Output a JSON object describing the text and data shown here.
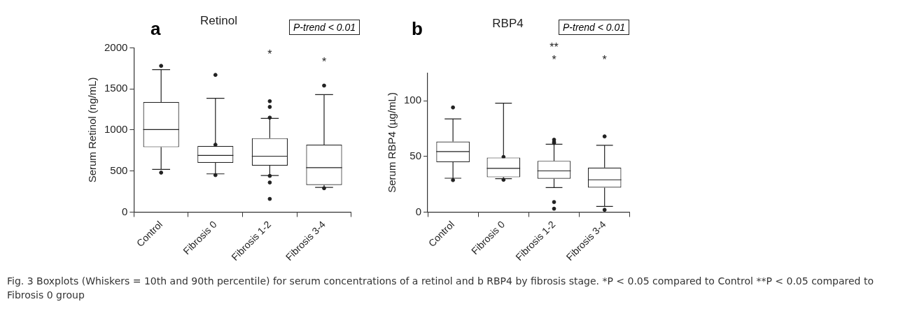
{
  "chart_data": [
    {
      "type": "box",
      "title": "Retinol",
      "ylabel": "Serum Retinol (ng/mL)",
      "categories": [
        "Control",
        "Fibrosis 0",
        "Fibrosis 1-2",
        "Fibrosis 3-4"
      ],
      "color": "#222222",
      "ylim": [
        0,
        2000
      ],
      "yticks": [
        0,
        500,
        1000,
        1500,
        2000
      ],
      "grid": false,
      "legend": false,
      "boxes": [
        {
          "low": 520,
          "q1": 790,
          "median": 1005,
          "q3": 1340,
          "high": 1735,
          "mean": 1060,
          "outliers": [
            1780,
            480
          ]
        },
        {
          "low": 465,
          "q1": 600,
          "median": 690,
          "q3": 805,
          "high": 1385,
          "mean": 780,
          "outliers": [
            1670,
            820,
            450
          ]
        },
        {
          "low": 445,
          "q1": 565,
          "median": 680,
          "q3": 900,
          "high": 1140,
          "mean": 735,
          "outliers": [
            1350,
            1280,
            1150,
            440,
            360,
            160
          ]
        },
        {
          "low": 300,
          "q1": 330,
          "median": 540,
          "q3": 820,
          "high": 1430,
          "mean": 630,
          "outliers": [
            1540,
            290
          ]
        }
      ],
      "annotations": [
        "a",
        "P-trend < 0.01",
        "Fig. 3 Boxplots (Whiskers = 10th and 90th percentile) for serum concentrations of a retinol and b RBP4 by fibrosis stage. *P < 0.05 compared to Control **P < 0.05 compared to Fibrosis 0 group",
        "*",
        "*"
      ]
    },
    {
      "type": "box",
      "title": "RBP4",
      "ylabel": "Serum RBP4 (µg/mL)",
      "categories": [
        "Control",
        "Fibrosis 0",
        "Fibrosis 1-2",
        "Fibrosis 3-4"
      ],
      "color": "#222222",
      "ylim": [
        0,
        125
      ],
      "yticks": [
        0,
        50,
        100
      ],
      "grid": false,
      "legend": false,
      "boxes": [
        {
          "low": 30.4,
          "q1": 44.8,
          "median": 54.3,
          "q3": 63.4,
          "high": 83.7,
          "mean": 55,
          "outliers": [
            94,
            28.7
          ]
        },
        {
          "low": 30,
          "q1": 31.3,
          "median": 39.3,
          "q3": 49,
          "high": 97.9,
          "mean": 46,
          "outliers": [
            49.5,
            29
          ]
        },
        {
          "low": 22,
          "q1": 30,
          "median": 37,
          "q3": 46,
          "high": 61,
          "mean": 38,
          "outliers": [
            65,
            63,
            62,
            9,
            3
          ]
        },
        {
          "low": 5,
          "q1": 22,
          "median": 29,
          "q3": 40,
          "high": 60,
          "mean": 30,
          "outliers": [
            68,
            2
          ]
        }
      ],
      "annotations": [
        "b",
        "P-trend < 0.01",
        "**",
        "*",
        "*"
      ]
    }
  ]
}
